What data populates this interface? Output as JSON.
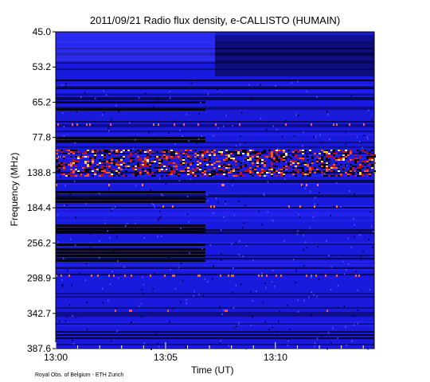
{
  "chart_data": {
    "type": "heatmap",
    "title": "2011/09/21  Radio flux density, e-CALLISTO (HUMAIN)",
    "xlabel": "Time (UT)",
    "ylabel": "Frequency (MHz)",
    "x_ticks": [
      "13:00",
      "13:05",
      "13:10"
    ],
    "x_range": [
      "13:00",
      "13:14:30"
    ],
    "y_ticks": [
      "45.0",
      "53.2",
      "65.2",
      "77.8",
      "138.8",
      "184.4",
      "256.2",
      "298.9",
      "342.7",
      "387.6"
    ],
    "y_axis_direction": "frequency increases downward",
    "colors": {
      "background": "#1a1adc",
      "low": "#000008",
      "high": "#ffffff",
      "burst": "#ff5020"
    },
    "features": [
      {
        "frequency_mhz": "45.0-53.2",
        "time": "13:00-13:07",
        "intensity": "bright blue"
      },
      {
        "frequency_mhz": "53.2-65.2",
        "time": "13:08-13:14",
        "intensity": "dark"
      },
      {
        "frequency_mhz": "138.8",
        "time": "13:00-13:14",
        "intensity": "strong interference band (red/yellow/white)"
      },
      {
        "frequency_mhz": "77.8",
        "time": "13:00-13:07",
        "intensity": "dark line"
      },
      {
        "frequency_mhz": "256.2",
        "time": "13:00-13:07",
        "intensity": "dark lines"
      },
      {
        "frequency_mhz": "298.9",
        "time": "13:00-13:14",
        "intensity": "orange interference line"
      }
    ]
  },
  "footer": {
    "credit": "Royal Obs. of Belgium - ETH Zurich"
  }
}
